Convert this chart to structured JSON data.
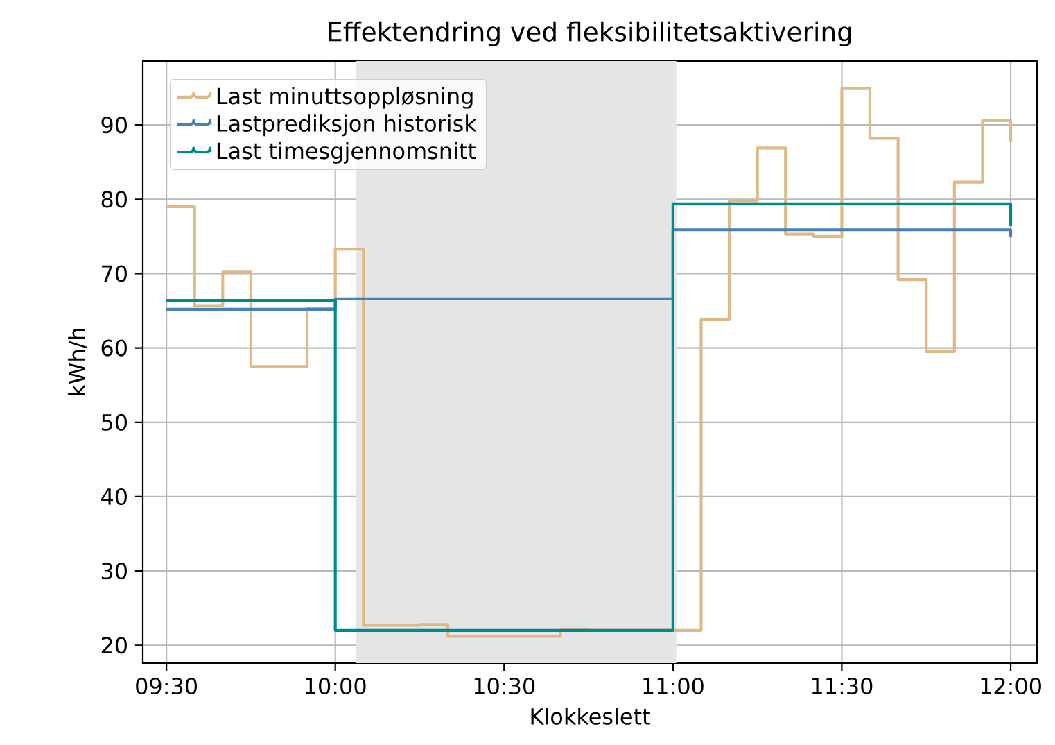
{
  "chart_data": {
    "type": "step",
    "title": "Effektendring ved fleksibilitetsaktivering",
    "xlabel": "Klokkeslett",
    "ylabel": "kWh/h",
    "xlim": [
      9.43,
      12.078
    ],
    "ylim": [
      17.6,
      98.6
    ],
    "xticks": [
      {
        "value": 9.5,
        "label": "09:30"
      },
      {
        "value": 10.0,
        "label": "10:00"
      },
      {
        "value": 10.5,
        "label": "10:30"
      },
      {
        "value": 11.0,
        "label": "11:00"
      },
      {
        "value": 11.5,
        "label": "11:30"
      },
      {
        "value": 12.0,
        "label": "12:00"
      }
    ],
    "yticks": [
      20,
      30,
      40,
      50,
      60,
      70,
      80,
      90
    ],
    "grid": true,
    "legend": "top left",
    "bands": [
      {
        "axis": "x",
        "from": 10.06,
        "to": 11.01,
        "color": "#e5e5e5"
      }
    ],
    "series": [
      {
        "name": "Last minuttsoppløsning",
        "color": "#deb887",
        "x": [
          9.5,
          9.5833,
          9.6667,
          9.75,
          9.8333,
          9.9167,
          10.0,
          10.0833,
          10.1667,
          10.25,
          10.3333,
          10.4167,
          10.5,
          10.5833,
          10.6667,
          10.75,
          10.8333,
          10.9167,
          11.0,
          11.0833,
          11.1667,
          11.25,
          11.3333,
          11.4167,
          11.5,
          11.5833,
          11.6667,
          11.75,
          11.8333,
          11.9167,
          12.0
        ],
        "values": [
          79.0,
          65.7,
          70.3,
          57.5,
          57.5,
          65.3,
          73.3,
          22.7,
          22.7,
          22.8,
          21.2,
          21.2,
          21.2,
          21.2,
          22.1,
          22.0,
          22.0,
          22.0,
          22.0,
          63.8,
          79.8,
          86.9,
          75.3,
          75.0,
          94.9,
          88.2,
          69.2,
          59.5,
          82.3,
          90.6,
          87.8
        ]
      },
      {
        "name": "Lastprediksjon historisk",
        "color": "#4682b4",
        "x": [
          9.5,
          10.0,
          11.0,
          12.0
        ],
        "values": [
          65.2,
          66.6,
          75.9,
          74.9
        ]
      },
      {
        "name": "Last timesgjennomsnitt",
        "color": "#008b8b",
        "x": [
          9.5,
          10.0,
          11.0,
          12.0
        ],
        "values": [
          66.4,
          22.0,
          79.4,
          76.4
        ]
      }
    ]
  }
}
